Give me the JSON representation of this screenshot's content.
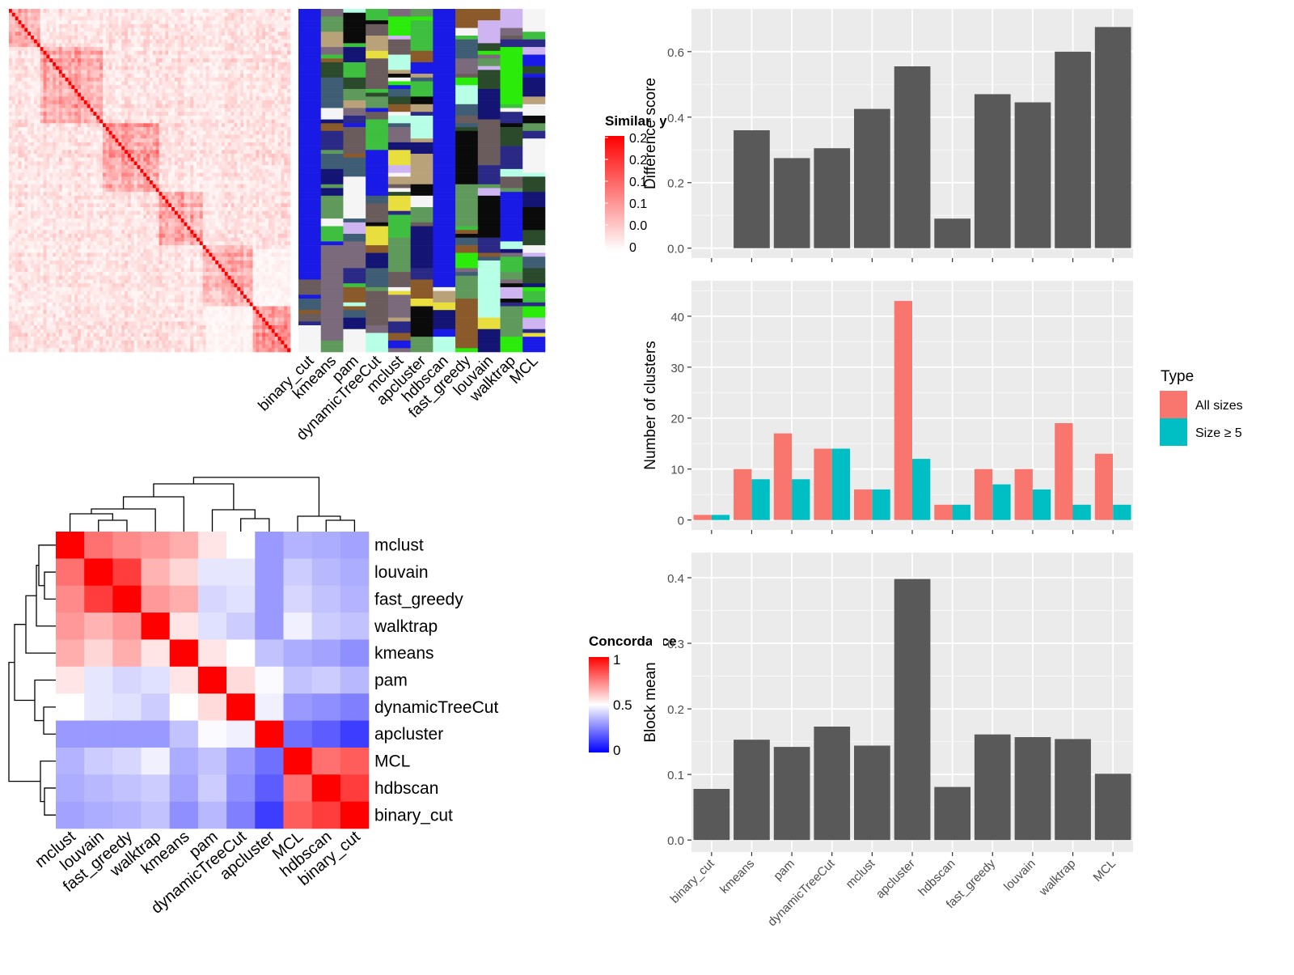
{
  "methods_order": [
    "binary_cut",
    "kmeans",
    "pam",
    "dynamicTreeCut",
    "mclust",
    "apcluster",
    "hdbscan",
    "fast_greedy",
    "louvain",
    "walktrap",
    "MCL"
  ],
  "panel_top_left": {
    "legend_title": "Similarity",
    "legend_ticks": [
      "0.2",
      "0.2",
      "0.1",
      "0.1",
      "0.0",
      "0"
    ],
    "heatmap_colors": {
      "high": "#ff0000",
      "low": "#ffffff"
    }
  },
  "panel_bottom_left": {
    "legend_title": "Concordance",
    "legend_ticks": [
      "1",
      "0.5",
      "0"
    ],
    "row_labels": [
      "mclust",
      "louvain",
      "fast_greedy",
      "walktrap",
      "kmeans",
      "pam",
      "dynamicTreeCut",
      "apcluster",
      "MCL",
      "hdbscan",
      "binary_cut"
    ],
    "col_labels": [
      "mclust",
      "louvain",
      "fast_greedy",
      "walktrap",
      "kmeans",
      "pam",
      "dynamicTreeCut",
      "apcluster",
      "MCL",
      "hdbscan",
      "binary_cut"
    ],
    "colors": {
      "high": "#ff0000",
      "mid": "#ffffff",
      "low": "#0000ff"
    }
  },
  "chart_data": [
    {
      "type": "bar",
      "ylabel": "Difference score",
      "categories": [
        "binary_cut",
        "kmeans",
        "pam",
        "dynamicTreeCut",
        "mclust",
        "apcluster",
        "hdbscan",
        "fast_greedy",
        "louvain",
        "walktrap",
        "MCL"
      ],
      "values": [
        0.0,
        0.36,
        0.275,
        0.305,
        0.425,
        0.555,
        0.09,
        0.47,
        0.445,
        0.6,
        0.675
      ],
      "ylim": [
        0,
        0.7
      ],
      "yticks": [
        "0.0",
        "0.2",
        "0.4",
        "0.6"
      ],
      "bar_color": "#595959"
    },
    {
      "type": "bar",
      "ylabel": "Number of clusters",
      "categories": [
        "binary_cut",
        "kmeans",
        "pam",
        "dynamicTreeCut",
        "mclust",
        "apcluster",
        "hdbscan",
        "fast_greedy",
        "louvain",
        "walktrap",
        "MCL"
      ],
      "series": [
        {
          "name": "All sizes",
          "color": "#f8766d",
          "values": [
            1,
            10,
            17,
            14,
            6,
            43,
            3,
            10,
            10,
            19,
            13
          ]
        },
        {
          "name": "Size ≥ 5",
          "color": "#00bfc4",
          "values": [
            1,
            8,
            8,
            14,
            6,
            12,
            3,
            7,
            6,
            3,
            3
          ]
        }
      ],
      "ylim": [
        0,
        45
      ],
      "yticks": [
        "0",
        "10",
        "20",
        "30",
        "40"
      ],
      "legend": {
        "title": "Type",
        "position": "right"
      }
    },
    {
      "type": "bar",
      "ylabel": "Block mean",
      "categories": [
        "binary_cut",
        "kmeans",
        "pam",
        "dynamicTreeCut",
        "mclust",
        "apcluster",
        "hdbscan",
        "fast_greedy",
        "louvain",
        "walktrap",
        "MCL"
      ],
      "values": [
        0.078,
        0.153,
        0.142,
        0.173,
        0.144,
        0.398,
        0.081,
        0.161,
        0.157,
        0.154,
        0.101
      ],
      "ylim": [
        0,
        0.42
      ],
      "yticks": [
        "0.0",
        "0.1",
        "0.2",
        "0.3",
        "0.4"
      ],
      "bar_color": "#595959"
    }
  ]
}
